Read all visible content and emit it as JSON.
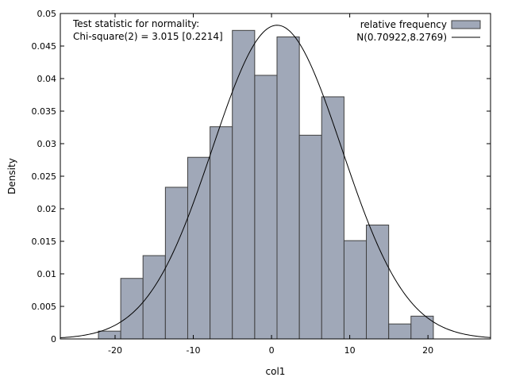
{
  "chart_data": {
    "type": "bar",
    "xlabel": "col1",
    "ylabel": "Density",
    "xlim": [
      -27,
      28
    ],
    "ylim": [
      0,
      0.05
    ],
    "x_ticks": [
      -20,
      -10,
      0,
      10,
      20
    ],
    "x_tick_labels": [
      "-20",
      "-10",
      "0",
      "10",
      "20"
    ],
    "y_ticks": [
      0,
      0.005,
      0.01,
      0.015,
      0.02,
      0.025,
      0.03,
      0.035,
      0.04,
      0.045,
      0.05
    ],
    "y_tick_labels": [
      "0",
      "0.005",
      "0.01",
      "0.015",
      "0.02",
      "0.025",
      "0.03",
      "0.035",
      "0.04",
      "0.045",
      "0.05"
    ],
    "bin_width": 2.855,
    "bin_centers": [
      -20.7,
      -17.85,
      -15.0,
      -12.14,
      -9.29,
      -6.43,
      -3.58,
      -0.72,
      2.13,
      4.99,
      7.84,
      10.7,
      13.55,
      16.41,
      19.26,
      22.11
    ],
    "values": [
      0.0012,
      0.0093,
      0.0128,
      0.0233,
      0.0279,
      0.0326,
      0.0474,
      0.0405,
      0.0464,
      0.0313,
      0.0372,
      0.0151,
      0.0175,
      0.0023,
      0.0035,
      0
    ],
    "bar_color": "#a0a8b8",
    "bar_edge_color": "#404040",
    "curve": {
      "mean": 0.70922,
      "sd": 8.2769
    },
    "legend": {
      "position": "top-right",
      "entries": [
        "relative frequency",
        "N(0.70922,8.2769)"
      ]
    },
    "annotation": [
      "Test statistic for normality:",
      "Chi-square(2) = 3.015 [0.2214]"
    ]
  }
}
